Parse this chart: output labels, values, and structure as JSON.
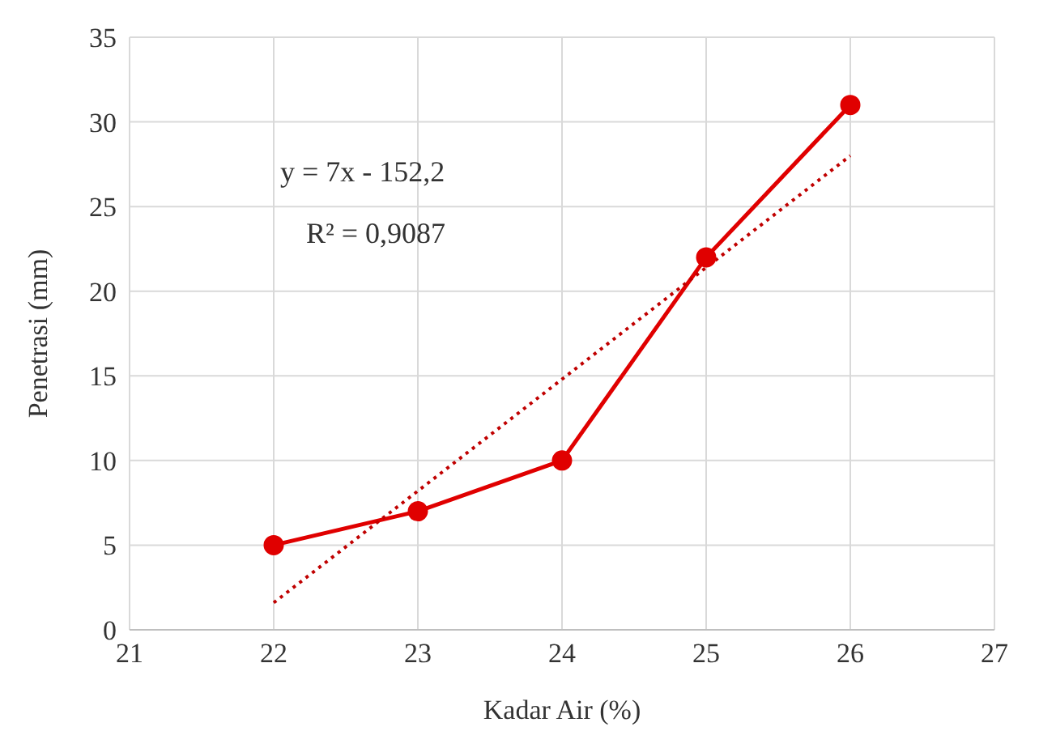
{
  "chart_data": {
    "type": "line",
    "xlabel": "Kadar Air (%)",
    "ylabel": "Penetrasi (mm)",
    "x": [
      22,
      23,
      24,
      25,
      26
    ],
    "series": [
      {
        "color": "#e00000",
        "values": [
          5,
          7,
          10,
          22,
          31
        ],
        "marker": "circle",
        "line_style": "solid"
      },
      {
        "color": "#c00000",
        "x": [
          22,
          26
        ],
        "values": [
          1.6,
          28
        ],
        "marker": "none",
        "line_style": "dotted"
      }
    ],
    "xlim": [
      21,
      27
    ],
    "xticks": [
      21,
      22,
      23,
      24,
      25,
      26,
      27
    ],
    "ylim": [
      0,
      35
    ],
    "yticks": [
      0,
      5,
      10,
      15,
      20,
      25,
      30,
      35
    ],
    "grid": true,
    "annotations": [
      "y = 7x - 152,2",
      "R² = 0,9087"
    ]
  }
}
